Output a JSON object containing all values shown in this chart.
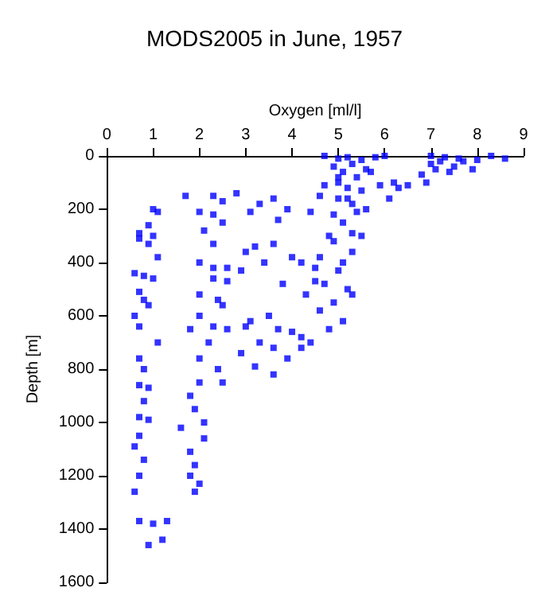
{
  "chart_data": {
    "type": "scatter",
    "title": "MODS2005 in June, 1957",
    "xlabel": "Oxygen [ml/l]",
    "ylabel": "Depth [m]",
    "xlim": [
      0,
      9
    ],
    "xticks": [
      0,
      1,
      2,
      3,
      4,
      5,
      6,
      7,
      8,
      9
    ],
    "ylim": [
      1600,
      0
    ],
    "yticks": [
      0,
      200,
      400,
      600,
      800,
      1000,
      1200,
      1400,
      1600
    ],
    "grid": false,
    "marker": "square",
    "series": [
      {
        "color": "#0000ff",
        "x": [
          1.0,
          1.1,
          0.9,
          0.7,
          0.7,
          1.0,
          0.9,
          1.1,
          0.6,
          0.8,
          1.0,
          0.7,
          0.8,
          0.9,
          0.6,
          0.7,
          1.1,
          0.7,
          0.8,
          0.7,
          0.9,
          0.8,
          0.7,
          0.9,
          0.7,
          0.6,
          0.8,
          0.7,
          0.6,
          0.7,
          1.0,
          1.2,
          0.9,
          1.3,
          1.7,
          2.3,
          2.8,
          2.5,
          2.0,
          2.3,
          2.5,
          2.1,
          2.3,
          2.0,
          2.3,
          2.6,
          2.3,
          2.6,
          2.0,
          2.4,
          2.5,
          2.0,
          2.3,
          2.6,
          1.8,
          2.2,
          2.0,
          2.4,
          2.0,
          1.8,
          1.9,
          2.1,
          1.6,
          2.1,
          1.8,
          1.9,
          1.8,
          1.9,
          2.0,
          2.5,
          3.3,
          3.6,
          3.1,
          3.9,
          4.4,
          3.7,
          3.2,
          3.6,
          3.0,
          3.4,
          4.0,
          4.6,
          2.9,
          4.2,
          3.8,
          4.3,
          4.5,
          3.1,
          3.0,
          3.7,
          4.0,
          3.5,
          3.3,
          3.6,
          4.2,
          3.9,
          3.2,
          3.6,
          2.9,
          4.7,
          5.0,
          5.2,
          5.5,
          5.8,
          6.0,
          5.3,
          4.9,
          5.6,
          5.1,
          5.4,
          5.0,
          4.7,
          5.2,
          5.5,
          5.9,
          4.6,
          5.0,
          5.3,
          5.6,
          5.4,
          4.9,
          5.1,
          5.3,
          4.8,
          5.5,
          4.9,
          5.3,
          5.1,
          4.5,
          5.0,
          4.7,
          5.2,
          5.3,
          4.9,
          4.6,
          5.1,
          4.8,
          4.4,
          4.2,
          5.2,
          5.0,
          5.7,
          6.1,
          6.2,
          7.0,
          7.3,
          7.6,
          8.0,
          8.3,
          8.6,
          7.2,
          7.5,
          7.1,
          6.8,
          7.4,
          7.9,
          6.9,
          6.5,
          6.3,
          7.0,
          7.7
        ],
        "values": [
          200,
          210,
          260,
          290,
          310,
          300,
          330,
          380,
          440,
          450,
          460,
          510,
          540,
          560,
          600,
          640,
          700,
          760,
          800,
          860,
          870,
          920,
          980,
          990,
          1050,
          1090,
          1140,
          1200,
          1260,
          1370,
          1380,
          1440,
          1460,
          1370,
          150,
          150,
          140,
          170,
          210,
          220,
          250,
          280,
          330,
          400,
          420,
          420,
          460,
          470,
          520,
          540,
          560,
          600,
          640,
          650,
          650,
          700,
          760,
          800,
          850,
          900,
          950,
          1000,
          1020,
          1060,
          1110,
          1160,
          1200,
          1260,
          1230,
          850,
          180,
          160,
          210,
          200,
          210,
          240,
          340,
          330,
          360,
          400,
          380,
          380,
          430,
          400,
          480,
          520,
          470,
          620,
          640,
          650,
          660,
          600,
          700,
          720,
          720,
          760,
          790,
          820,
          740,
          0,
          10,
          5,
          15,
          5,
          0,
          30,
          40,
          50,
          60,
          80,
          100,
          110,
          120,
          130,
          110,
          150,
          160,
          180,
          200,
          210,
          220,
          250,
          290,
          300,
          300,
          320,
          360,
          400,
          420,
          430,
          480,
          500,
          520,
          550,
          580,
          620,
          650,
          700,
          680,
          160,
          80,
          60,
          160,
          100,
          0,
          5,
          10,
          15,
          0,
          10,
          20,
          40,
          50,
          70,
          60,
          50,
          100,
          110,
          120,
          30,
          20
        ]
      }
    ]
  }
}
